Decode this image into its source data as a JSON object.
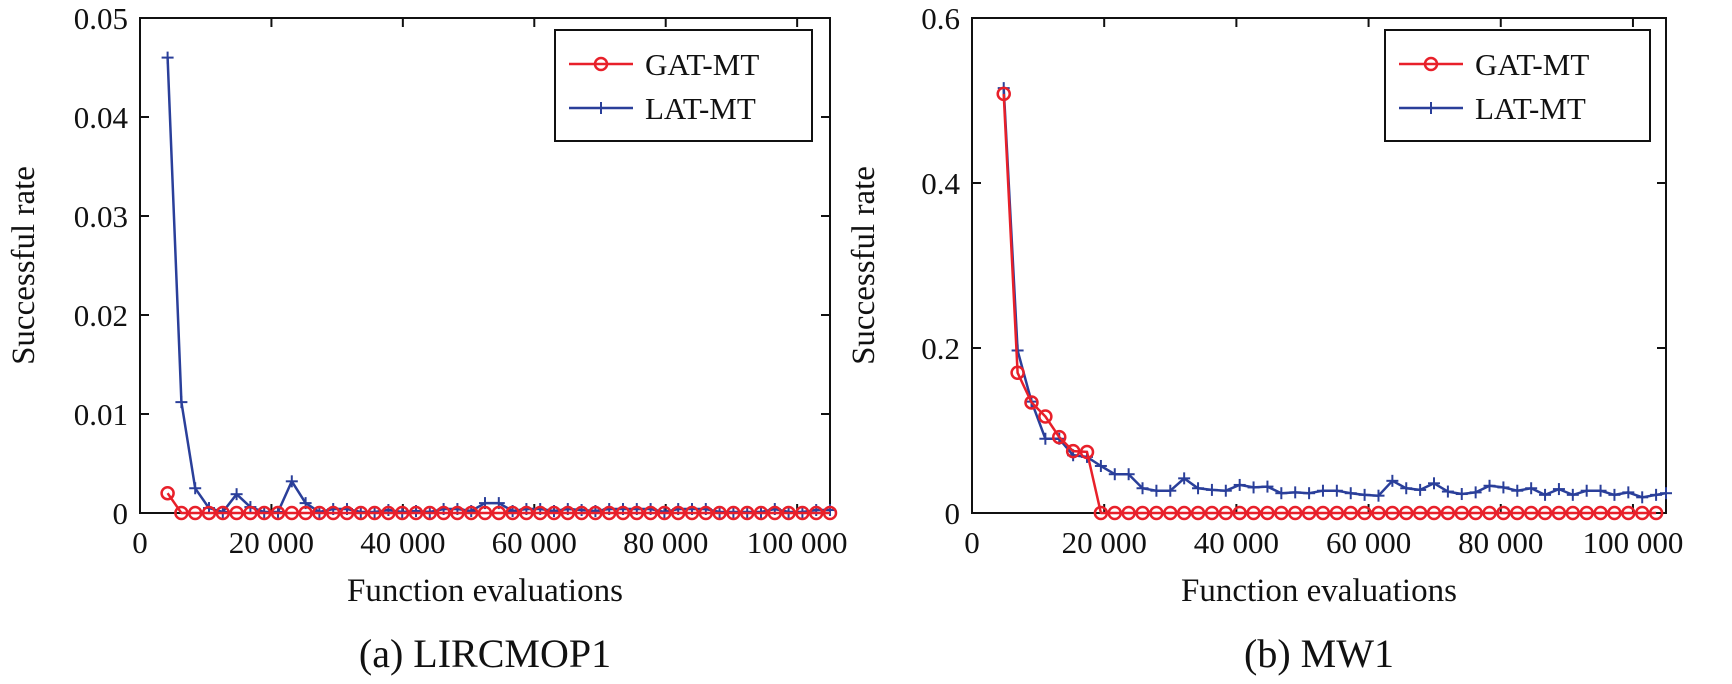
{
  "chart_data": [
    {
      "type": "line",
      "caption": "(a) LIRCMOP1",
      "xlabel": "Function evaluations",
      "ylabel": "Successful rate",
      "xlim": [
        0,
        105000
      ],
      "ylim": [
        0,
        0.05
      ],
      "xticks": [
        0,
        20000,
        40000,
        60000,
        80000,
        100000
      ],
      "xtick_labels": [
        "0",
        "20 000",
        "40 000",
        "60 000",
        "80 000",
        "100 000"
      ],
      "yticks": [
        0,
        0.01,
        0.02,
        0.03,
        0.04,
        0.05
      ],
      "ytick_labels": [
        "0",
        "0.01",
        "0.02",
        "0.03",
        "0.04",
        "0.05"
      ],
      "grid": false,
      "legend_position": "top-right",
      "series": [
        {
          "name": "GAT-MT",
          "color": "#e8202a",
          "marker": "circle",
          "x": [
            4200,
            6300,
            8400,
            10500,
            12600,
            14700,
            16800,
            18900,
            21000,
            23100,
            25200,
            27300,
            29400,
            31500,
            33600,
            35700,
            37800,
            39900,
            42000,
            44100,
            46200,
            48300,
            50400,
            52500,
            54600,
            56700,
            58800,
            60900,
            63000,
            65100,
            67200,
            69300,
            71400,
            73500,
            75600,
            77700,
            79800,
            81900,
            84000,
            86100,
            88200,
            90300,
            92400,
            94500,
            96600,
            98700,
            100800,
            102900,
            105000
          ],
          "y": [
            0.002,
            0,
            0,
            0,
            0,
            0,
            0,
            0,
            0,
            0,
            0,
            0,
            0,
            0,
            0,
            0,
            0,
            0,
            0,
            0,
            0,
            0,
            0,
            0,
            0,
            0,
            0,
            0,
            0,
            0,
            0,
            0,
            0,
            0,
            0,
            0,
            0,
            0,
            0,
            0,
            0,
            0,
            0,
            0,
            0,
            0,
            0,
            0,
            0
          ]
        },
        {
          "name": "LAT-MT",
          "color": "#2a3f9a",
          "marker": "plus",
          "x": [
            4200,
            6300,
            8400,
            10500,
            12600,
            14700,
            16800,
            18900,
            21000,
            23100,
            25200,
            27300,
            29400,
            31500,
            33600,
            35700,
            37800,
            39900,
            42000,
            44100,
            46200,
            48300,
            50400,
            52500,
            54600,
            56700,
            58800,
            60900,
            63000,
            65100,
            67200,
            69300,
            71400,
            73500,
            75600,
            77700,
            79800,
            81900,
            84000,
            86100,
            88200,
            90300,
            92400,
            94500,
            96600,
            98700,
            100800,
            102900,
            105000
          ],
          "y": [
            0.046,
            0.0112,
            0.0025,
            0.0005,
            0.0001,
            0.0019,
            0.0006,
            0.0001,
            0.0001,
            0.0032,
            0.001,
            0.0001,
            0.0004,
            0.0004,
            0.0001,
            0.0001,
            0.0003,
            0.0001,
            0.0002,
            0.0001,
            0.0004,
            0.0004,
            0.0002,
            0.001,
            0.001,
            0.0002,
            0.0004,
            0.0004,
            0.0002,
            0.0004,
            0.0003,
            0.0002,
            0.0004,
            0.0004,
            0.0004,
            0.0004,
            0.0001,
            0.0004,
            0.0004,
            0.0004,
            0.0001,
            0.0001,
            0.0001,
            0.0001,
            0.0004,
            0.0001,
            0.0001,
            0.0003,
            0.0003
          ]
        }
      ]
    },
    {
      "type": "line",
      "caption": "(b) MW1",
      "xlabel": "Function evaluations",
      "ylabel": "Successful rate",
      "xlim": [
        0,
        105000
      ],
      "ylim": [
        0,
        0.6
      ],
      "xticks": [
        0,
        20000,
        40000,
        60000,
        80000,
        100000
      ],
      "xtick_labels": [
        "0",
        "20 000",
        "40 000",
        "60 000",
        "80 000",
        "100 000"
      ],
      "yticks": [
        0,
        0.2,
        0.4,
        0.6
      ],
      "ytick_labels": [
        "0",
        "0.2",
        "0.4",
        "0.6"
      ],
      "grid": false,
      "legend_position": "top-right",
      "series": [
        {
          "name": "GAT-MT",
          "color": "#e8202a",
          "marker": "circle",
          "x": [
            4800,
            6900,
            9000,
            11100,
            13200,
            15300,
            17400,
            19500,
            21600,
            23700,
            25800,
            27900,
            30000,
            32100,
            34200,
            36300,
            38400,
            40500,
            42600,
            44700,
            46800,
            48900,
            51000,
            53100,
            55200,
            57300,
            59400,
            61500,
            63600,
            65700,
            67800,
            69900,
            72000,
            74100,
            76200,
            78300,
            80400,
            82500,
            84600,
            86700,
            88800,
            90900,
            93000,
            95100,
            97200,
            99300,
            101400,
            103500
          ],
          "y": [
            0.508,
            0.17,
            0.134,
            0.117,
            0.092,
            0.075,
            0.074,
            0,
            0,
            0,
            0,
            0,
            0,
            0,
            0,
            0,
            0,
            0,
            0,
            0,
            0,
            0,
            0,
            0,
            0,
            0,
            0,
            0,
            0,
            0,
            0,
            0,
            0,
            0,
            0,
            0,
            0,
            0,
            0,
            0,
            0,
            0,
            0,
            0,
            0,
            0,
            0,
            0
          ]
        },
        {
          "name": "LAT-MT",
          "color": "#2a3f9a",
          "marker": "plus",
          "x": [
            4800,
            6900,
            9000,
            11100,
            13200,
            15300,
            17400,
            19500,
            21600,
            23700,
            25800,
            27900,
            30000,
            32100,
            34200,
            36300,
            38400,
            40500,
            42600,
            44700,
            46800,
            48900,
            51000,
            53100,
            55200,
            57300,
            59400,
            61500,
            63600,
            65700,
            67800,
            69900,
            72000,
            74100,
            76200,
            78300,
            80400,
            82500,
            84600,
            86700,
            88800,
            90900,
            93000,
            95100,
            97200,
            99300,
            101400,
            103500,
            105000
          ],
          "y": [
            0.515,
            0.197,
            0.135,
            0.09,
            0.09,
            0.07,
            0.068,
            0.057,
            0.047,
            0.047,
            0.03,
            0.027,
            0.027,
            0.042,
            0.03,
            0.028,
            0.027,
            0.034,
            0.031,
            0.032,
            0.024,
            0.025,
            0.024,
            0.027,
            0.027,
            0.024,
            0.022,
            0.021,
            0.039,
            0.03,
            0.028,
            0.036,
            0.026,
            0.023,
            0.025,
            0.033,
            0.031,
            0.027,
            0.03,
            0.022,
            0.029,
            0.022,
            0.027,
            0.027,
            0.022,
            0.025,
            0.019,
            0.022,
            0.024
          ]
        }
      ]
    }
  ]
}
